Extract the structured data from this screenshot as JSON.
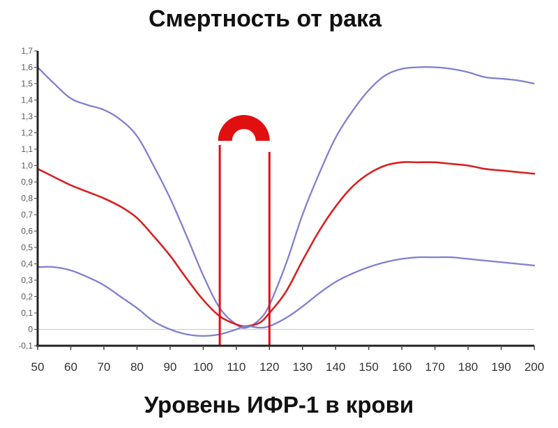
{
  "chart_data": {
    "type": "line",
    "title": "Смертность от рака",
    "xlabel": "Уровень ИФР-1 в крови",
    "ylabel": "",
    "xlim": [
      50,
      200
    ],
    "ylim": [
      -0.1,
      1.7
    ],
    "x_ticks": [
      50,
      60,
      70,
      80,
      90,
      100,
      110,
      120,
      130,
      140,
      150,
      160,
      170,
      180,
      190,
      200
    ],
    "y_ticks": [
      -0.1,
      0,
      0.1,
      0.2,
      0.3,
      0.4,
      0.5,
      0.6,
      0.7,
      0.8,
      0.9,
      1.0,
      1.1,
      1.2,
      1.3,
      1.4,
      1.5,
      1.6,
      1.7
    ],
    "y_tick_labels": [
      "-0,1",
      "0",
      "0,1",
      "0,2",
      "0,3",
      "0,4",
      "0,5",
      "0,6",
      "0,7",
      "0,8",
      "0,9",
      "1,0",
      "1,1",
      "1,2",
      "1,3",
      "1,4",
      "1,5",
      "1,6",
      "1,7"
    ],
    "grid": false,
    "reference_line_y": 0,
    "series": [
      {
        "color": "#8080d0",
        "style": "dotted",
        "x": [
          50,
          55,
          60,
          65,
          70,
          75,
          80,
          85,
          90,
          95,
          100,
          105,
          110,
          113,
          117,
          120,
          125,
          130,
          135,
          140,
          145,
          150,
          155,
          160,
          165,
          170,
          175,
          180,
          185,
          190,
          195,
          200
        ],
        "y": [
          1.6,
          1.5,
          1.41,
          1.37,
          1.34,
          1.28,
          1.18,
          1.0,
          0.8,
          0.57,
          0.33,
          0.13,
          0.03,
          0.01,
          0.06,
          0.15,
          0.4,
          0.7,
          0.95,
          1.17,
          1.33,
          1.46,
          1.55,
          1.59,
          1.6,
          1.6,
          1.59,
          1.57,
          1.54,
          1.53,
          1.52,
          1.5
        ]
      },
      {
        "color": "#d82020",
        "style": "solid",
        "x": [
          50,
          55,
          60,
          65,
          70,
          75,
          80,
          85,
          90,
          95,
          100,
          105,
          110,
          113,
          117,
          120,
          125,
          130,
          135,
          140,
          145,
          150,
          155,
          160,
          165,
          170,
          175,
          180,
          185,
          190,
          195,
          200
        ],
        "y": [
          0.98,
          0.93,
          0.88,
          0.84,
          0.8,
          0.75,
          0.68,
          0.57,
          0.45,
          0.31,
          0.18,
          0.08,
          0.03,
          0.02,
          0.04,
          0.1,
          0.23,
          0.42,
          0.6,
          0.75,
          0.87,
          0.95,
          1.0,
          1.02,
          1.02,
          1.02,
          1.01,
          1.0,
          0.98,
          0.97,
          0.96,
          0.95
        ]
      },
      {
        "color": "#8080d0",
        "style": "dotted",
        "x": [
          50,
          55,
          60,
          65,
          70,
          75,
          80,
          85,
          90,
          95,
          100,
          105,
          110,
          113,
          117,
          120,
          125,
          130,
          135,
          140,
          145,
          150,
          155,
          160,
          165,
          170,
          175,
          180,
          185,
          190,
          195,
          200
        ],
        "y": [
          0.38,
          0.38,
          0.36,
          0.32,
          0.27,
          0.2,
          0.13,
          0.05,
          0.0,
          -0.03,
          -0.04,
          -0.03,
          0.0,
          0.02,
          0.01,
          0.02,
          0.07,
          0.14,
          0.22,
          0.29,
          0.34,
          0.38,
          0.41,
          0.43,
          0.44,
          0.44,
          0.44,
          0.43,
          0.42,
          0.41,
          0.4,
          0.39
        ]
      }
    ],
    "annotations": {
      "optimal_range": [
        105,
        120
      ],
      "marker_color": "#e01010"
    }
  }
}
